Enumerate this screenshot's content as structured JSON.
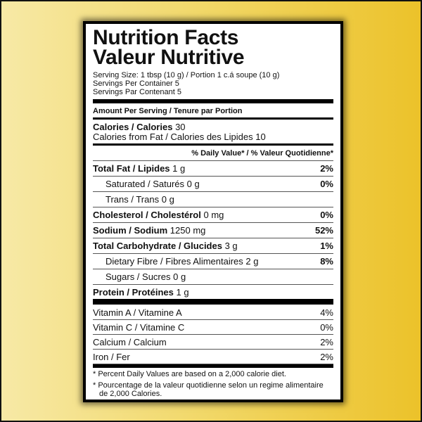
{
  "title": [
    "Nutrition Facts",
    "Valeur Nutritive"
  ],
  "serving": [
    "Serving Size: 1 tbsp (10 g) / Portion 1 c.á soupe (10 g)",
    "Servings Per Container 5",
    "Servings Par Contenant 5"
  ],
  "amount_header": "Amount Per Serving / Tenure par Portion",
  "calories": {
    "label": "Calories / Calories",
    "value": "30"
  },
  "calories_fat": {
    "label": "Calories from Fat / Calories des Lipides",
    "value": "10"
  },
  "dv_header": "% Daily Value* / % Valeur Quotidienne*",
  "nutrients": [
    {
      "label": "Total Fat / Lipides",
      "amount": "1 g",
      "dv": "2%"
    },
    {
      "label": "Saturated / Saturés",
      "amount": "0 g",
      "dv": "0%"
    },
    {
      "label": "Trans / Trans",
      "amount": "0 g"
    },
    {
      "label": "Cholesterol / Cholestérol",
      "amount": "0 mg",
      "dv": "0%"
    },
    {
      "label": "Sodium / Sodium",
      "amount": "1250 mg",
      "dv": "52%"
    },
    {
      "label": "Total Carbohydrate / Glucides",
      "amount": "3 g",
      "dv": "1%"
    },
    {
      "label": "Dietary Fibre / Fibres Alimentaires",
      "amount": "2 g",
      "dv": "8%"
    },
    {
      "label": "Sugars / Sucres",
      "amount": "0 g"
    },
    {
      "label": "Protein / Protéines",
      "amount": "1 g"
    }
  ],
  "vitamins": [
    {
      "label": "Vitamin A / Vitamine A",
      "dv": "4%"
    },
    {
      "label": "Vitamin C / Vitamine C",
      "dv": "0%"
    },
    {
      "label": "Calcium / Calcium",
      "dv": "2%"
    },
    {
      "label": "Iron / Fer",
      "dv": "2%"
    }
  ],
  "footnotes": [
    "* Percent Daily Values are based on a 2,000 calorie diet.",
    "* Pourcentage de la valeur quotidienne selon un regime alimentaire de 2,000 Calories."
  ]
}
